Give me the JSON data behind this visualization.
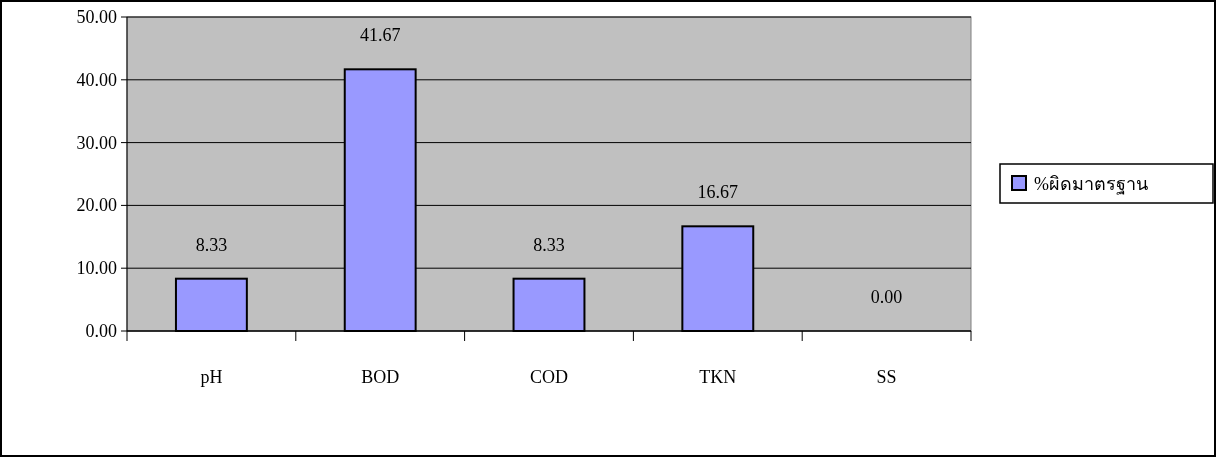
{
  "chart_data": {
    "type": "bar",
    "categories": [
      "pH",
      "BOD",
      "COD",
      "TKN",
      "SS"
    ],
    "series": [
      {
        "name": "%ผิดมาตรฐาน",
        "color": "#9999ff",
        "values": [
          8.33,
          41.67,
          8.33,
          16.67,
          0
        ],
        "value_labels": [
          "8.33",
          "41.67",
          "8.33",
          "16.67",
          "0.00"
        ]
      }
    ],
    "ylim": [
      0,
      50
    ],
    "yticks": [
      {
        "value": 0,
        "label": "0.00"
      },
      {
        "value": 10,
        "label": "10.00"
      },
      {
        "value": 20,
        "label": "20.00"
      },
      {
        "value": 30,
        "label": "30.00"
      },
      {
        "value": 40,
        "label": "40.00"
      },
      {
        "value": 50,
        "label": "50.00"
      }
    ],
    "grid": "y",
    "legend": "right"
  }
}
